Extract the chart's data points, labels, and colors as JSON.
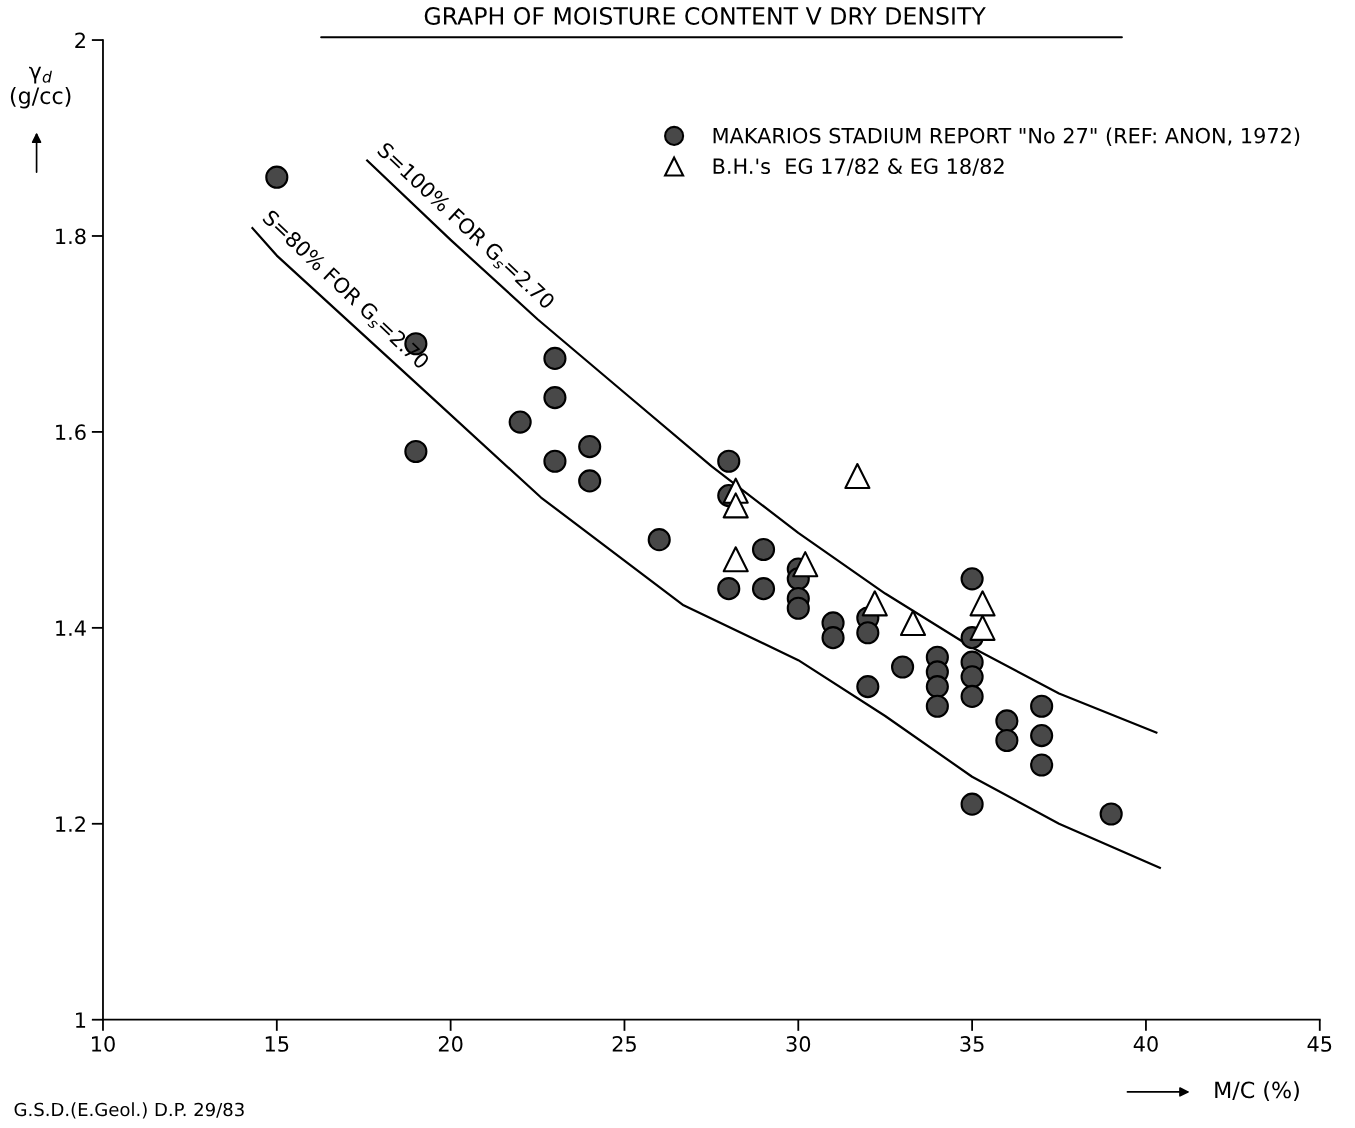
{
  "chart_data": {
    "type": "scatter",
    "title": "GRAPH OF MOISTURE CONTENT V DRY DENSITY",
    "xlabel": "M/C (%)",
    "ylabel": "γ$_{d}$ (g/cc)",
    "xlim": [
      10,
      45
    ],
    "xticks": [
      10,
      15,
      20,
      25,
      30,
      35,
      40,
      45
    ],
    "ylim": [
      1,
      2
    ],
    "yticks": [
      1,
      1.2,
      1.4,
      1.6,
      1.8,
      2
    ],
    "grid": false,
    "legend": "top right",
    "annotations": [
      "G.S.D.(E.Geol.) D.P. 29/83"
    ],
    "series": [
      {
        "name": "MAKARIOS STADIUM REPORT \"No 27\" (REF: ANON, 1972)",
        "marker": "circle",
        "color": "#484848",
        "x": [
          15,
          19,
          19,
          22,
          23,
          23,
          23,
          24,
          24,
          26,
          28,
          28,
          28,
          29,
          29,
          30,
          30,
          30,
          30,
          31,
          31,
          32,
          32,
          32,
          33,
          34,
          34,
          34,
          34,
          35,
          35,
          35,
          35,
          35,
          35,
          36,
          36,
          37,
          37,
          37,
          39
        ],
        "values": [
          1.86,
          1.69,
          1.58,
          1.61,
          1.675,
          1.635,
          1.57,
          1.585,
          1.55,
          1.49,
          1.57,
          1.535,
          1.44,
          1.48,
          1.44,
          1.46,
          1.45,
          1.43,
          1.42,
          1.405,
          1.39,
          1.41,
          1.395,
          1.34,
          1.36,
          1.37,
          1.355,
          1.34,
          1.32,
          1.45,
          1.39,
          1.365,
          1.35,
          1.33,
          1.22,
          1.305,
          1.285,
          1.32,
          1.29,
          1.26,
          1.21
        ]
      },
      {
        "name": "B.H.'s  EG 17/82 & EG 18/82",
        "marker": "triangle",
        "color": "#000000",
        "x": [
          28.2,
          28.2,
          28.2,
          30.2,
          31.7,
          32.2,
          33.3,
          35.3,
          35.3
        ],
        "values": [
          1.54,
          1.525,
          1.47,
          1.465,
          1.555,
          1.425,
          1.405,
          1.425,
          1.4
        ]
      },
      {
        "name": "S=100% FOR G$_{s}$=2.70",
        "type": "line",
        "marker": "none",
        "line_style": "solid",
        "color": "#000000",
        "x": [
          17.6,
          20,
          22.5,
          25,
          27.5,
          30,
          32.5,
          35,
          37.5,
          40.3
        ],
        "values": [
          1.877,
          1.796,
          1.715,
          1.64,
          1.565,
          1.497,
          1.435,
          1.38,
          1.333,
          1.293
        ]
      },
      {
        "name": "S=80% FOR G$_{s}$=2.70",
        "type": "line",
        "marker": "none",
        "line_style": "solid",
        "color": "#000000",
        "x": [
          14.3,
          15,
          19,
          22.6,
          26.7,
          30,
          32.5,
          35,
          37.5,
          40.4
        ],
        "values": [
          1.808,
          1.78,
          1.65,
          1.533,
          1.423,
          1.367,
          1.31,
          1.248,
          1.2,
          1.155
        ]
      }
    ]
  }
}
